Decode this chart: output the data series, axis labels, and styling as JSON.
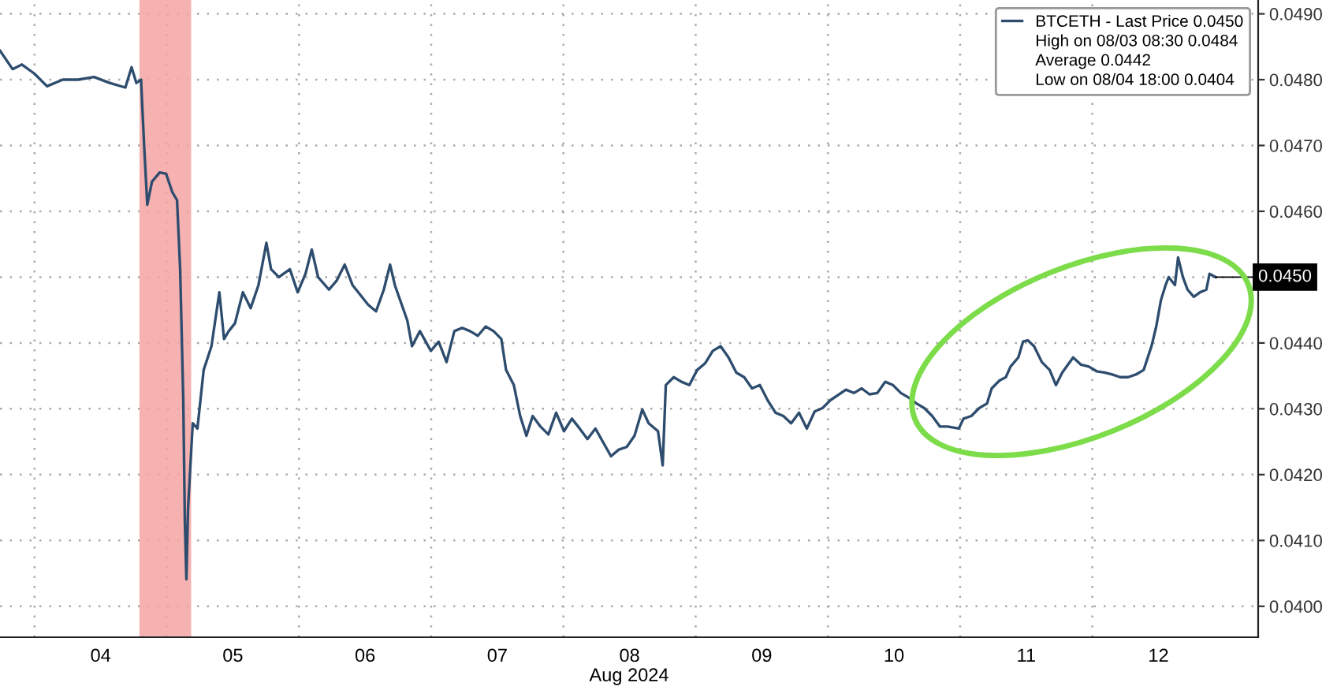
{
  "chart_data": {
    "type": "line",
    "xlabel": "Aug 2024",
    "x": [
      "2024-08-03T17:44",
      "2024-08-03T20:01",
      "2024-08-03T21:43",
      "2024-08-04T00:00",
      "2024-08-04T02:16",
      "2024-08-04T05:07",
      "2024-08-04T07:57",
      "2024-08-04T10:48",
      "2024-08-04T13:38",
      "2024-08-04T16:29",
      "2024-08-04T17:37",
      "2024-08-04T18:29",
      "2024-08-04T19:20",
      "2024-08-04T19:54",
      "2024-08-04T20:28",
      "2024-08-04T21:19",
      "2024-08-04T22:44",
      "2024-08-04T23:53",
      "2024-08-05T01:01",
      "2024-08-05T01:52",
      "2024-08-05T02:26",
      "2024-08-05T03:00",
      "2024-08-05T03:17",
      "2024-08-05T03:34",
      "2024-08-05T03:52",
      "2024-08-05T04:43",
      "2024-08-05T05:34",
      "2024-08-05T06:42",
      "2024-08-05T08:07",
      "2024-08-05T09:33",
      "2024-08-05T10:24",
      "2024-08-05T11:15",
      "2024-08-05T12:23",
      "2024-08-05T13:49",
      "2024-08-05T15:14",
      "2024-08-05T16:39",
      "2024-08-05T18:05",
      "2024-08-05T18:56",
      "2024-08-05T20:21",
      "2024-08-05T22:21",
      "2024-08-05T23:46",
      "2024-08-06T01:11",
      "2024-08-06T02:19",
      "2024-08-06T03:28",
      "2024-08-06T05:27",
      "2024-08-06T06:52",
      "2024-08-06T08:18",
      "2024-08-06T09:43",
      "2024-08-06T12:34",
      "2024-08-06T13:59",
      "2024-08-06T15:24",
      "2024-08-06T16:32",
      "2024-08-06T17:24",
      "2024-08-06T19:40",
      "2024-08-06T20:31",
      "2024-08-06T21:57",
      "2024-08-06T23:56",
      "2024-08-07T01:21",
      "2024-08-07T02:47",
      "2024-08-07T04:12",
      "2024-08-07T05:37",
      "2024-08-07T07:03",
      "2024-08-07T08:28",
      "2024-08-07T09:53",
      "2024-08-07T11:19",
      "2024-08-07T12:44",
      "2024-08-07T13:35",
      "2024-08-07T15:00",
      "2024-08-07T16:09",
      "2024-08-07T17:17",
      "2024-08-07T18:25",
      "2024-08-07T19:50",
      "2024-08-07T21:16",
      "2024-08-07T22:41",
      "2024-08-08T00:06",
      "2024-08-08T01:32",
      "2024-08-08T02:57",
      "2024-08-08T04:22",
      "2024-08-08T05:48",
      "2024-08-08T08:38",
      "2024-08-08T10:03",
      "2024-08-08T11:29",
      "2024-08-08T12:54",
      "2024-08-08T14:19",
      "2024-08-08T15:28",
      "2024-08-08T17:10",
      "2024-08-08T18:01",
      "2024-08-08T18:35",
      "2024-08-08T20:01",
      "2024-08-08T21:26",
      "2024-08-08T22:51",
      "2024-08-09T00:17",
      "2024-08-09T01:42",
      "2024-08-09T03:07",
      "2024-08-09T04:32",
      "2024-08-09T05:58",
      "2024-08-09T07:23",
      "2024-08-09T08:48",
      "2024-08-09T10:14",
      "2024-08-09T11:39",
      "2024-08-09T13:04",
      "2024-08-09T14:30",
      "2024-08-09T15:55",
      "2024-08-09T17:20",
      "2024-08-09T18:46",
      "2024-08-09T20:11",
      "2024-08-09T21:36",
      "2024-08-09T23:01",
      "2024-08-10T00:27",
      "2024-08-10T03:17",
      "2024-08-10T04:43",
      "2024-08-10T06:08",
      "2024-08-10T07:33",
      "2024-08-10T08:59",
      "2024-08-10T10:24",
      "2024-08-10T11:49",
      "2024-08-10T13:15",
      "2024-08-10T14:40",
      "2024-08-10T16:05",
      "2024-08-10T17:30",
      "2024-08-10T18:56",
      "2024-08-10T20:21",
      "2024-08-10T21:46",
      "2024-08-10T23:46",
      "2024-08-11T00:37",
      "2024-08-11T02:02",
      "2024-08-11T03:28",
      "2024-08-11T04:53",
      "2024-08-11T05:44",
      "2024-08-11T07:09",
      "2024-08-11T08:18",
      "2024-08-11T09:09",
      "2024-08-11T10:34",
      "2024-08-11T11:25",
      "2024-08-11T12:17",
      "2024-08-11T13:25",
      "2024-08-11T14:50",
      "2024-08-11T16:15",
      "2024-08-11T17:24",
      "2024-08-11T18:32",
      "2024-08-11T20:31",
      "2024-08-11T21:57",
      "2024-08-11T23:22",
      "2024-08-12T00:47",
      "2024-08-12T02:13",
      "2024-08-12T03:38",
      "2024-08-12T05:03",
      "2024-08-12T06:29",
      "2024-08-12T07:54",
      "2024-08-12T09:19",
      "2024-08-12T10:44",
      "2024-08-12T11:36",
      "2024-08-12T12:27",
      "2024-08-12T13:18",
      "2024-08-12T13:52",
      "2024-08-12T15:00",
      "2024-08-12T15:34",
      "2024-08-12T16:26",
      "2024-08-12T17:17",
      "2024-08-12T18:25",
      "2024-08-12T19:33",
      "2024-08-12T20:42",
      "2024-08-12T21:16",
      "2024-08-12T22:24"
    ],
    "series": [
      {
        "name": "BTCETH - Last Price 0.0450",
        "color": "#2e4d6e",
        "values": [
          0.04844,
          0.04816,
          0.04823,
          0.04809,
          0.0479,
          0.048,
          0.048,
          0.04804,
          0.04795,
          0.04788,
          0.04819,
          0.04795,
          0.048,
          0.04699,
          0.0461,
          0.04645,
          0.04659,
          0.04657,
          0.04629,
          0.04617,
          0.04512,
          0.04313,
          0.0413,
          0.04041,
          0.04149,
          0.04278,
          0.0427,
          0.04359,
          0.04395,
          0.04477,
          0.04406,
          0.04418,
          0.0443,
          0.04477,
          0.04453,
          0.04488,
          0.04552,
          0.04512,
          0.045,
          0.04512,
          0.04477,
          0.04505,
          0.04542,
          0.045,
          0.04481,
          0.04495,
          0.04519,
          0.04488,
          0.04458,
          0.04448,
          0.04481,
          0.04519,
          0.04488,
          0.04434,
          0.04395,
          0.04418,
          0.04388,
          0.04402,
          0.04371,
          0.04418,
          0.04423,
          0.04418,
          0.04411,
          0.04425,
          0.04418,
          0.04406,
          0.04359,
          0.04336,
          0.04289,
          0.04259,
          0.04289,
          0.04273,
          0.04261,
          0.04294,
          0.04266,
          0.04285,
          0.0427,
          0.04254,
          0.0427,
          0.04228,
          0.04238,
          0.04242,
          0.04259,
          0.04299,
          0.04278,
          0.04266,
          0.04214,
          0.04336,
          0.04348,
          0.04341,
          0.04336,
          0.04359,
          0.04369,
          0.04388,
          0.04395,
          0.04378,
          0.04355,
          0.04348,
          0.04331,
          0.04336,
          0.04313,
          0.04294,
          0.04289,
          0.04278,
          0.04294,
          0.0427,
          0.04296,
          0.04301,
          0.04313,
          0.04329,
          0.04324,
          0.04331,
          0.04322,
          0.04324,
          0.04341,
          0.04336,
          0.04324,
          0.04317,
          0.04308,
          0.04301,
          0.04289,
          0.04273,
          0.04273,
          0.0427,
          0.04285,
          0.04289,
          0.04301,
          0.04308,
          0.04331,
          0.04343,
          0.04348,
          0.04364,
          0.04378,
          0.04402,
          0.04404,
          0.04395,
          0.04371,
          0.04359,
          0.04336,
          0.04355,
          0.04378,
          0.04367,
          0.04364,
          0.04357,
          0.04355,
          0.04352,
          0.04348,
          0.04348,
          0.04352,
          0.04359,
          0.04395,
          0.04425,
          0.04465,
          0.04488,
          0.045,
          0.04488,
          0.0453,
          0.045,
          0.04481,
          0.0447,
          0.04477,
          0.04481,
          0.04505,
          0.045
        ]
      }
    ],
    "xlim": [
      "2024-08-03T17:44",
      "2024-08-13T06:06"
    ],
    "xticks": [
      {
        "value": "2024-08-04T00:00",
        "label": null
      },
      {
        "value": "2024-08-05T00:00",
        "label": null
      },
      {
        "value": "2024-08-06T00:00",
        "label": null
      },
      {
        "value": "2024-08-07T00:00",
        "label": null
      },
      {
        "value": "2024-08-08T00:00",
        "label": null
      },
      {
        "value": "2024-08-09T00:00",
        "label": null
      },
      {
        "value": "2024-08-10T00:00",
        "label": null
      },
      {
        "value": "2024-08-11T00:00",
        "label": null
      },
      {
        "value": "2024-08-12T00:00",
        "label": null
      },
      {
        "value": "2024-08-04T12:00",
        "label": "04"
      },
      {
        "value": "2024-08-05T12:00",
        "label": "05"
      },
      {
        "value": "2024-08-06T12:00",
        "label": "06"
      },
      {
        "value": "2024-08-07T12:00",
        "label": "07"
      },
      {
        "value": "2024-08-08T12:00",
        "label": "08"
      },
      {
        "value": "2024-08-09T12:00",
        "label": "09"
      },
      {
        "value": "2024-08-10T12:00",
        "label": "10"
      },
      {
        "value": "2024-08-11T12:00",
        "label": "11"
      },
      {
        "value": "2024-08-12T12:00",
        "label": "12"
      }
    ],
    "ylim": [
      0.03953,
      0.04921
    ],
    "yticks": [
      {
        "value": 0.04,
        "label": "0.0400"
      },
      {
        "value": 0.041,
        "label": "0.0410"
      },
      {
        "value": 0.042,
        "label": "0.0420"
      },
      {
        "value": 0.043,
        "label": "0.0430"
      },
      {
        "value": 0.044,
        "label": "0.0440"
      },
      {
        "value": 0.045,
        "label": null
      },
      {
        "value": 0.046,
        "label": "0.0460"
      },
      {
        "value": 0.047,
        "label": "0.0470"
      },
      {
        "value": 0.048,
        "label": "0.0480"
      },
      {
        "value": 0.049,
        "label": "0.0490"
      }
    ],
    "bands": [
      {
        "axis": "x",
        "from": "2024-08-04T19:03",
        "to": "2024-08-05T04:26",
        "color": "#f4a3a3"
      }
    ],
    "annotations": [
      {
        "text": "0.0450",
        "x": "2024-08-12T22:24",
        "y": 0.045
      },
      "High on 08/03 08:30 0.0484",
      "Average 0.0442",
      "Low on 08/04 18:00 0.0404"
    ],
    "grid": true,
    "legend": "top right"
  }
}
